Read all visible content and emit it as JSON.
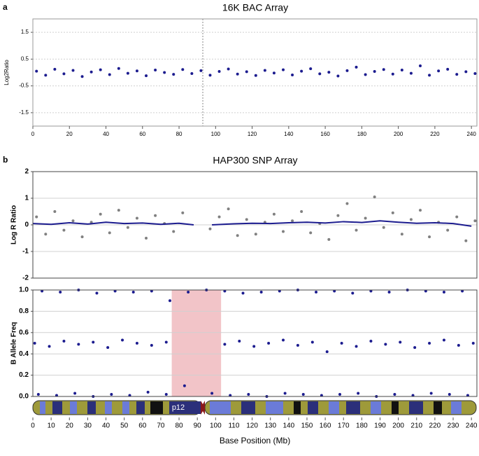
{
  "chart_data": [
    {
      "type": "scatter",
      "panel_label": "a",
      "title": "16K BAC Array",
      "y_label": "Log2Ratio",
      "xlim": [
        0,
        243
      ],
      "ylim": [
        -2,
        2
      ],
      "yticks": [
        1.5,
        0.5,
        -0.5,
        -1.5
      ],
      "xticks": [
        0,
        20,
        40,
        60,
        80,
        100,
        120,
        140,
        160,
        180,
        200,
        220,
        240
      ],
      "grid": true,
      "marker_line_x": 93,
      "series": [
        {
          "mode": "markers",
          "color": "#1c1c8f",
          "x": [
            2,
            7,
            12,
            17,
            22,
            27,
            32,
            37,
            42,
            47,
            52,
            57,
            62,
            67,
            72,
            77,
            82,
            87,
            92,
            97,
            102,
            107,
            112,
            117,
            122,
            127,
            132,
            137,
            142,
            147,
            152,
            157,
            162,
            167,
            172,
            177,
            182,
            187,
            192,
            197,
            202,
            207,
            212,
            217,
            222,
            227,
            232,
            237,
            242
          ],
          "values": [
            0.05,
            -0.1,
            0.12,
            -0.05,
            0.08,
            -0.15,
            0.02,
            0.1,
            -0.08,
            0.15,
            -0.03,
            0.06,
            -0.12,
            0.09,
            0.0,
            -0.07,
            0.11,
            -0.04,
            0.07,
            -0.1,
            0.04,
            0.13,
            -0.06,
            0.03,
            -0.11,
            0.08,
            -0.02,
            0.1,
            -0.09,
            0.05,
            0.14,
            -0.05,
            0.01,
            -0.13,
            0.07,
            0.2,
            -0.08,
            0.04,
            0.11,
            -0.06,
            0.09,
            -0.03,
            0.25,
            -0.1,
            0.06,
            0.12,
            -0.07,
            0.03,
            -0.04
          ]
        }
      ]
    },
    {
      "type": "scatter",
      "panel_label": "b",
      "title": "HAP300 SNP Array",
      "y_label": "Log R Ratio",
      "xlim": [
        0,
        243
      ],
      "ylim": [
        -2,
        2
      ],
      "yticks": [
        2,
        1,
        0,
        -1,
        -2
      ],
      "grid": true,
      "series": [
        {
          "mode": "markers",
          "color": "#808080",
          "x": [
            2,
            7,
            12,
            17,
            22,
            27,
            32,
            37,
            42,
            47,
            52,
            57,
            62,
            67,
            72,
            77,
            82,
            97,
            102,
            107,
            112,
            117,
            122,
            127,
            132,
            137,
            142,
            147,
            152,
            157,
            162,
            167,
            172,
            177,
            182,
            187,
            192,
            197,
            202,
            207,
            212,
            217,
            222,
            227,
            232,
            237,
            242
          ],
          "values": [
            0.3,
            -0.35,
            0.5,
            -0.2,
            0.15,
            -0.45,
            0.1,
            0.4,
            -0.3,
            0.55,
            -0.1,
            0.25,
            -0.5,
            0.35,
            0.05,
            -0.25,
            0.45,
            -0.15,
            0.3,
            0.6,
            -0.4,
            0.2,
            -0.35,
            0.1,
            0.4,
            -0.25,
            0.15,
            0.5,
            -0.3,
            0.05,
            -0.55,
            0.35,
            0.8,
            -0.2,
            0.25,
            1.05,
            -0.1,
            0.45,
            -0.35,
            0.2,
            0.55,
            -0.45,
            0.1,
            -0.2,
            0.3,
            -0.6,
            0.15
          ]
        },
        {
          "mode": "line",
          "color": "#1c1c8f",
          "x": [
            0,
            10,
            20,
            30,
            40,
            50,
            60,
            70,
            80,
            88,
            93,
            98,
            110,
            120,
            130,
            140,
            150,
            160,
            170,
            180,
            190,
            200,
            210,
            220,
            230,
            240
          ],
          "values": [
            0.05,
            0.02,
            0.08,
            0.03,
            0.1,
            0.05,
            0.07,
            0.02,
            0.06,
            0.0,
            null,
            0.0,
            0.04,
            0.06,
            0.05,
            0.08,
            0.1,
            0.07,
            0.12,
            0.09,
            0.15,
            0.1,
            0.06,
            0.08,
            0.05,
            -0.05
          ]
        }
      ]
    },
    {
      "type": "scatter",
      "y_label": "B Allele Freq",
      "x_label": "Base Position (Mb)",
      "xlim": [
        0,
        243
      ],
      "ylim": [
        0,
        1
      ],
      "yticks": [
        {
          "value": 1,
          "label": "1.0"
        },
        0.8,
        0.6,
        0.4,
        0.2,
        {
          "value": 0,
          "label": "0.0"
        }
      ],
      "xticks": [
        0,
        10,
        20,
        30,
        40,
        50,
        60,
        70,
        80,
        90,
        100,
        110,
        120,
        130,
        140,
        150,
        160,
        170,
        180,
        190,
        200,
        210,
        220,
        230,
        240
      ],
      "grid": true,
      "shaded_range": [
        76,
        103
      ],
      "shaded_color": "#f2c4c8",
      "band_label": "p12",
      "series": [
        {
          "mode": "markers",
          "color": "#1c1c8f",
          "x": [
            3,
            13,
            23,
            33,
            43,
            53,
            63,
            73,
            83,
            98,
            108,
            118,
            128,
            138,
            148,
            158,
            168,
            178,
            188,
            198,
            208,
            218,
            228,
            238
          ],
          "values": [
            0.02,
            0.01,
            0.03,
            0.0,
            0.02,
            0.01,
            0.04,
            0.02,
            0.1,
            0.03,
            0.01,
            0.02,
            0.0,
            0.03,
            0.02,
            0.01,
            0.02,
            0.03,
            0.0,
            0.02,
            0.01,
            0.03,
            0.02,
            0.01
          ]
        },
        {
          "mode": "markers",
          "color": "#1c1c8f",
          "x": [
            5,
            15,
            25,
            35,
            45,
            55,
            65,
            75,
            85,
            95,
            105,
            115,
            125,
            135,
            145,
            155,
            165,
            175,
            185,
            195,
            205,
            215,
            225,
            235
          ],
          "values": [
            0.99,
            0.98,
            1.0,
            0.97,
            0.99,
            0.98,
            0.99,
            0.9,
            0.98,
            1.0,
            0.99,
            0.97,
            0.98,
            0.99,
            1.0,
            0.98,
            0.99,
            0.97,
            0.99,
            0.98,
            1.0,
            0.99,
            0.98,
            0.99
          ]
        },
        {
          "mode": "markers",
          "color": "#1c1c8f",
          "x": [
            1,
            9,
            17,
            25,
            33,
            41,
            49,
            57,
            65,
            73,
            105,
            113,
            121,
            129,
            137,
            145,
            153,
            161,
            169,
            177,
            185,
            193,
            201,
            209,
            217,
            225,
            233,
            241
          ],
          "values": [
            0.5,
            0.47,
            0.52,
            0.49,
            0.51,
            0.46,
            0.53,
            0.5,
            0.48,
            0.51,
            0.49,
            0.52,
            0.47,
            0.5,
            0.53,
            0.48,
            0.51,
            0.42,
            0.5,
            0.47,
            0.52,
            0.49,
            0.51,
            0.46,
            0.5,
            0.53,
            0.48,
            0.5
          ]
        }
      ]
    }
  ]
}
